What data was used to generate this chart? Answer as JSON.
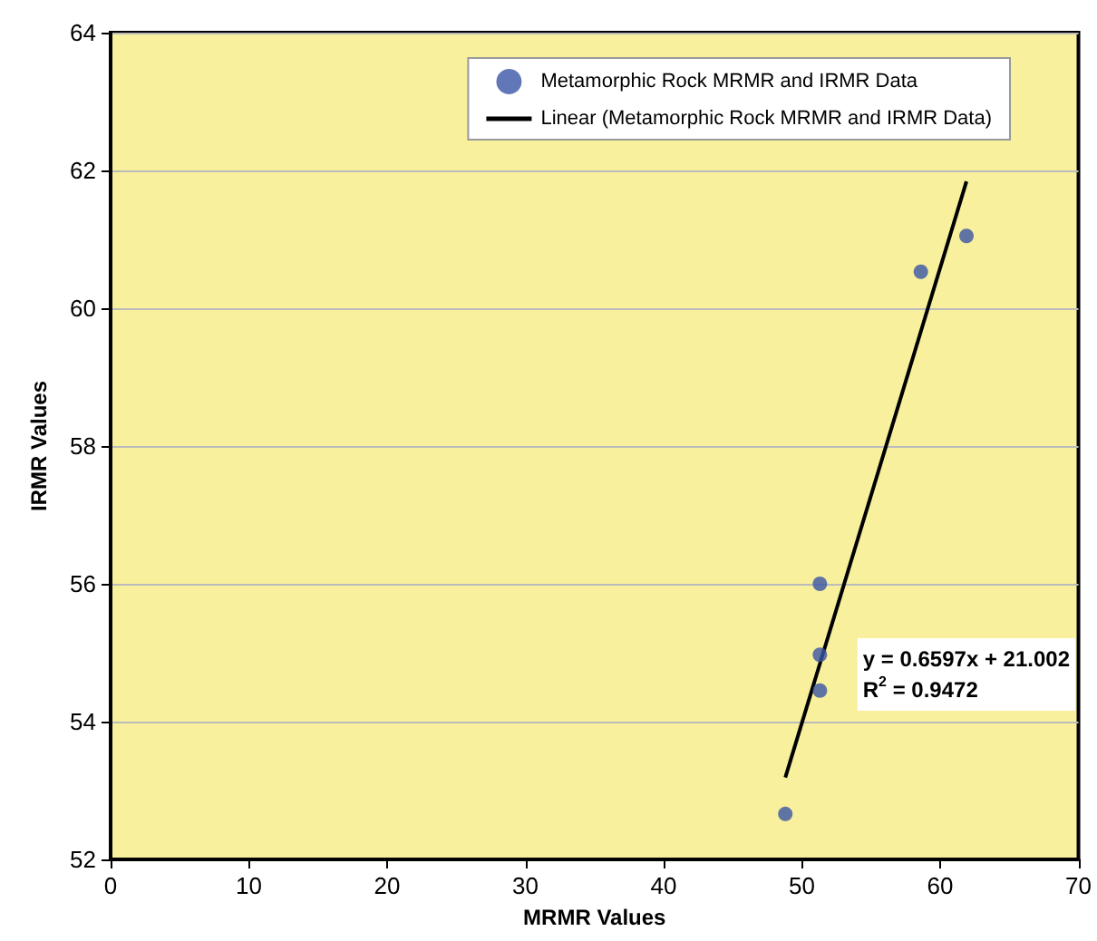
{
  "chart_data": {
    "type": "scatter",
    "xlabel": "MRMR Values",
    "ylabel": "IRMR Values",
    "xlim": [
      0,
      70
    ],
    "xticks": [
      0,
      10,
      20,
      30,
      40,
      50,
      60,
      70
    ],
    "ylim": [
      52,
      64
    ],
    "yticks": [
      52,
      54,
      56,
      58,
      60,
      62,
      64
    ],
    "grid": "y",
    "legend": "top right",
    "series": [
      {
        "name": "Metamorphic Rock MRMR and IRMR Data",
        "marker": "circle",
        "color": "#3a55a5",
        "x": [
          48.8,
          51.3,
          51.3,
          51.3,
          58.6,
          61.9
        ],
        "values": [
          52.66,
          54.45,
          54.97,
          56.0,
          60.53,
          61.05
        ]
      },
      {
        "name": "Linear (Metamorphic Rock MRMR and IRMR Data)",
        "type": "line",
        "marker": "none",
        "line_style": "solid",
        "color": "#000000",
        "x": [
          48.8,
          61.9
        ],
        "values": [
          53.19,
          61.84
        ]
      }
    ],
    "annotations": [
      "y = 0.6597x + 21.002",
      "R$^{2}$ = 0.9472"
    ]
  }
}
